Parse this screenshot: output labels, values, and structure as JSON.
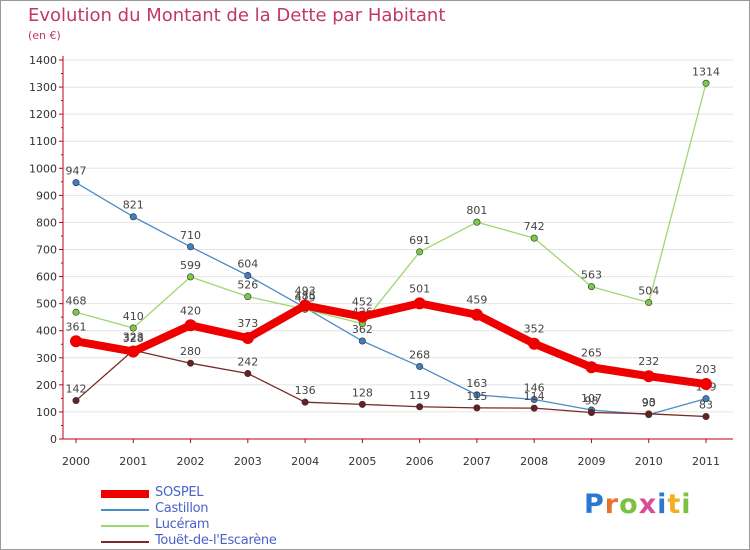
{
  "title": "Evolution du Montant de la Dette par Habitant",
  "unit_label": "(en €)",
  "logo": {
    "text": "Proxiti",
    "letter_colors": [
      "#2a78d0",
      "#e8732a",
      "#7cc142",
      "#d94c9a",
      "#2a78d0",
      "#f0b020",
      "#7cc142"
    ]
  },
  "chart_data": {
    "type": "line",
    "title": "Evolution du Montant de la Dette par Habitant",
    "ylabel": "(en €)",
    "xlabel": "",
    "ylim": [
      0,
      1400
    ],
    "y_ticks": [
      0,
      100,
      200,
      300,
      400,
      500,
      600,
      700,
      800,
      900,
      1000,
      1100,
      1200,
      1300,
      1400
    ],
    "categories": [
      "2000",
      "2001",
      "2002",
      "2003",
      "2004",
      "2005",
      "2006",
      "2007",
      "2008",
      "2009",
      "2010",
      "2011"
    ],
    "grid": "horizontal",
    "series": [
      {
        "name": "Castillon",
        "color": "#4a8cc8",
        "marker": "#3f7fc0",
        "values": [
          947,
          821,
          710,
          604,
          485,
          362,
          268,
          163,
          146,
          107,
          90,
          149
        ],
        "labels": [
          "947",
          "821",
          "710",
          "604",
          "485",
          "362",
          "268",
          "163",
          "146",
          "107",
          "90",
          "149"
        ]
      },
      {
        "name": "Lucéram",
        "color": "#9ed86e",
        "marker": "#7ac94a",
        "values": [
          468,
          410,
          599,
          526,
          479,
          426,
          691,
          801,
          742,
          563,
          504,
          1314
        ],
        "labels": [
          "468",
          "410",
          "599",
          "526",
          "479",
          "426",
          "691",
          "801",
          "742",
          "563",
          "504",
          "1314"
        ]
      },
      {
        "name": "Touët-de-l'Escarène",
        "color": "#7a2a2a",
        "marker": "#6a2020",
        "values": [
          142,
          328,
          280,
          242,
          136,
          128,
          119,
          115,
          114,
          98,
          93,
          83
        ],
        "labels": [
          "142",
          "328",
          "280",
          "242",
          "136",
          "128",
          "119",
          "115",
          "114",
          "98",
          "93",
          "83"
        ]
      },
      {
        "name": "SOSPEL",
        "color": "#ee0000",
        "marker": "#ee0000",
        "values": [
          361,
          323,
          420,
          373,
          493,
          452,
          501,
          459,
          352,
          265,
          232,
          203
        ],
        "labels": [
          "361",
          "323",
          "420",
          "373",
          "493",
          "452",
          "501",
          "459",
          "352",
          "265",
          "232",
          "203"
        ]
      }
    ]
  },
  "legend": [
    {
      "label": "SOSPEL",
      "color": "#ee0000",
      "series": 3
    },
    {
      "label": "Castillon",
      "color": "#4a8cc8",
      "series": 0
    },
    {
      "label": "Lucéram",
      "color": "#9ed86e",
      "series": 1
    },
    {
      "label": "Touët-de-l'Escarène",
      "color": "#7a2a2a",
      "series": 2
    }
  ]
}
